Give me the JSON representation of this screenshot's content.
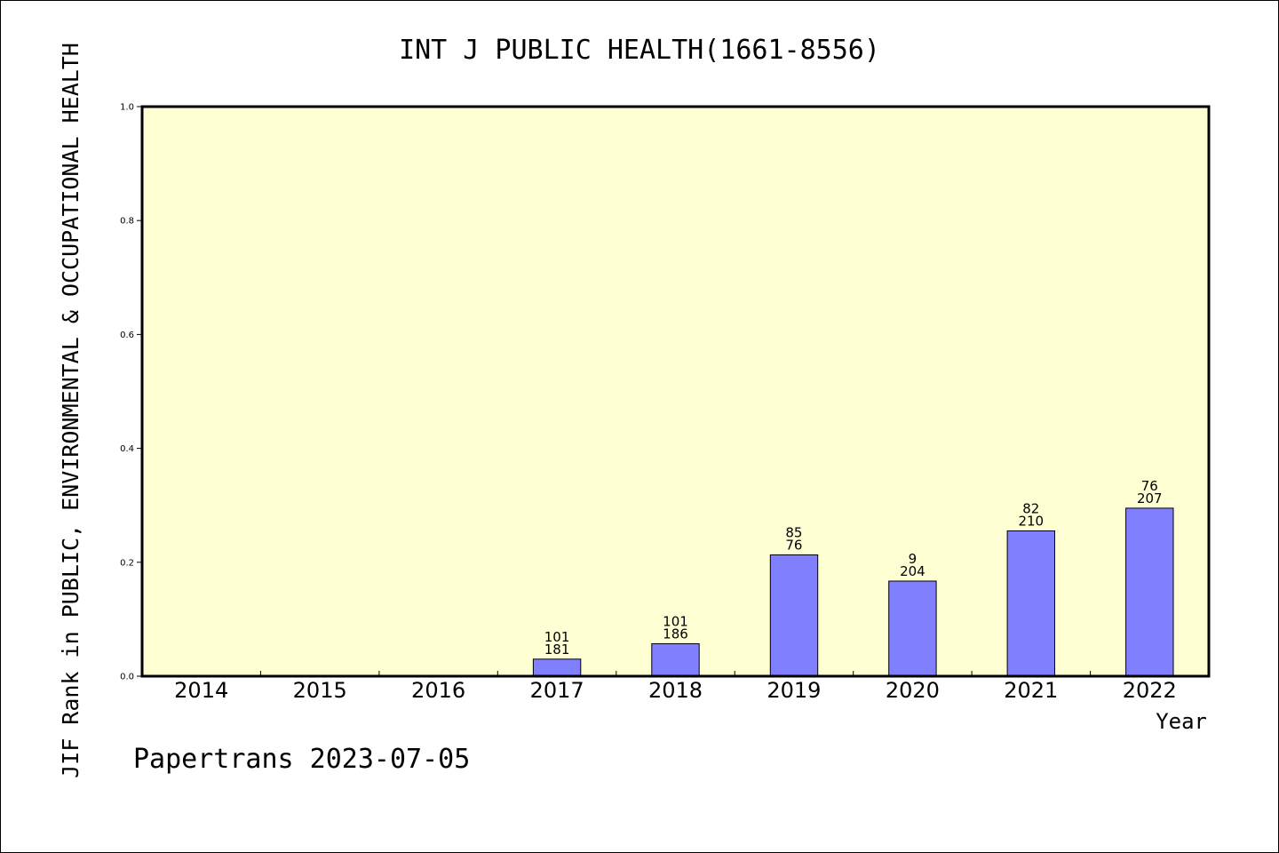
{
  "chart_data": {
    "type": "bar",
    "title": "INT J PUBLIC HEALTH(1661-8556)",
    "xlabel": "Year",
    "ylabel": "JIF Rank in PUBLIC, ENVIRONMENTAL & OCCUPATIONAL HEALTH",
    "ylim": [
      0,
      1.0
    ],
    "yticks": [
      "0.0",
      "0.2",
      "0.4",
      "0.6",
      "0.8",
      "1.0"
    ],
    "ytick_values": [
      0.0,
      0.2,
      0.4,
      0.6,
      0.8,
      1.0
    ],
    "categories": [
      "2014",
      "2015",
      "2016",
      "2017",
      "2018",
      "2019",
      "2020",
      "2021",
      "2022"
    ],
    "values": [
      null,
      null,
      null,
      0.03,
      0.057,
      0.213,
      0.167,
      0.255,
      0.295
    ],
    "labels_top": [
      "",
      "",
      "",
      "101",
      "101",
      "85",
      "9",
      "82",
      "76"
    ],
    "labels_bottom": [
      "",
      "",
      "",
      "181",
      "186",
      "76",
      "204",
      "210",
      "207"
    ],
    "grid": false,
    "legend": "none",
    "colors": {
      "plot_background": "#ffffd4",
      "bar_fill": "#8080ff",
      "bar_stroke": "#000000",
      "axis": "#000000"
    }
  },
  "footer": "Papertrans 2023-07-05"
}
